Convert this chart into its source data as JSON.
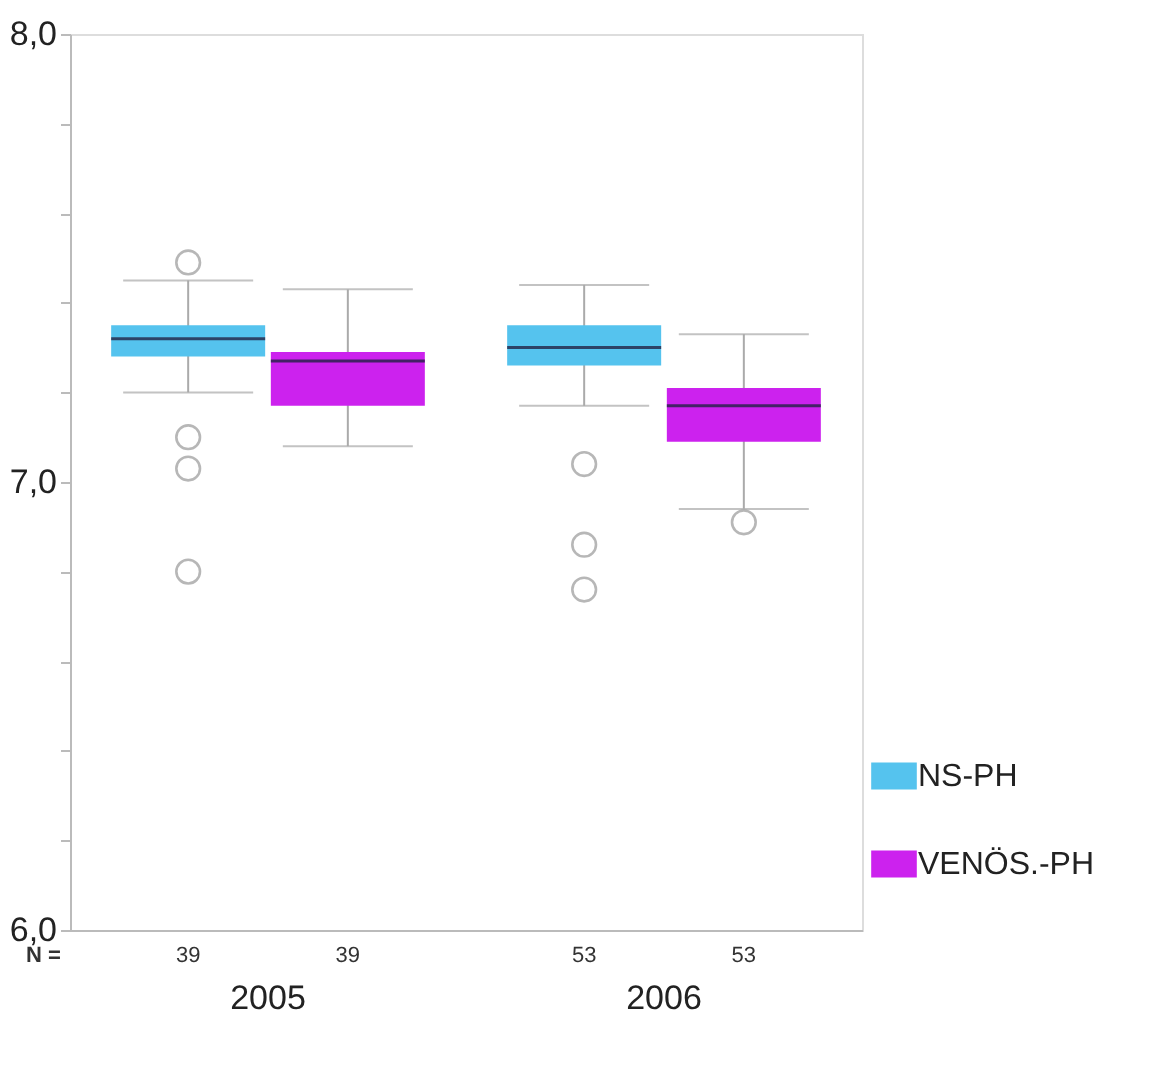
{
  "chart_data": {
    "type": "box",
    "categories": [
      "2005",
      "2006"
    ],
    "series": [
      {
        "name": "NS-PH",
        "color": "#55c3ee",
        "boxes": [
          {
            "low": 7.2,
            "q1": 7.28,
            "median": 7.32,
            "q3": 7.35,
            "high": 7.45,
            "outliers": [
              7.49,
              7.1,
              7.03,
              6.8
            ]
          },
          {
            "low": 7.17,
            "q1": 7.26,
            "median": 7.3,
            "q3": 7.35,
            "high": 7.44,
            "outliers": [
              7.04,
              6.86,
              6.76
            ]
          }
        ]
      },
      {
        "name": "VENÖS.-PH",
        "color": "#cc22ee",
        "boxes": [
          {
            "low": 7.08,
            "q1": 7.17,
            "median": 7.27,
            "q3": 7.29,
            "high": 7.43
          },
          {
            "low": 6.94,
            "q1": 7.09,
            "median": 7.17,
            "q3": 7.21,
            "high": 7.33,
            "outliers": [
              6.91
            ]
          }
        ]
      }
    ],
    "ylim": [
      6,
      8
    ],
    "yticks": [
      {
        "value": 6,
        "label": "6,0"
      },
      {
        "value": 6.2,
        "label": null
      },
      {
        "value": 6.4,
        "label": null
      },
      {
        "value": 6.6,
        "label": null
      },
      {
        "value": 6.8,
        "label": null
      },
      {
        "value": 7,
        "label": "7,0"
      },
      {
        "value": 7.2,
        "label": null
      },
      {
        "value": 7.4,
        "label": null
      },
      {
        "value": 7.6,
        "label": null
      },
      {
        "value": 7.8,
        "label": null
      },
      {
        "value": 8,
        "label": "8,0"
      }
    ],
    "annotations": [
      "N =",
      "39",
      "39",
      "53",
      "53"
    ],
    "grid": false,
    "legend": "bottom right"
  }
}
